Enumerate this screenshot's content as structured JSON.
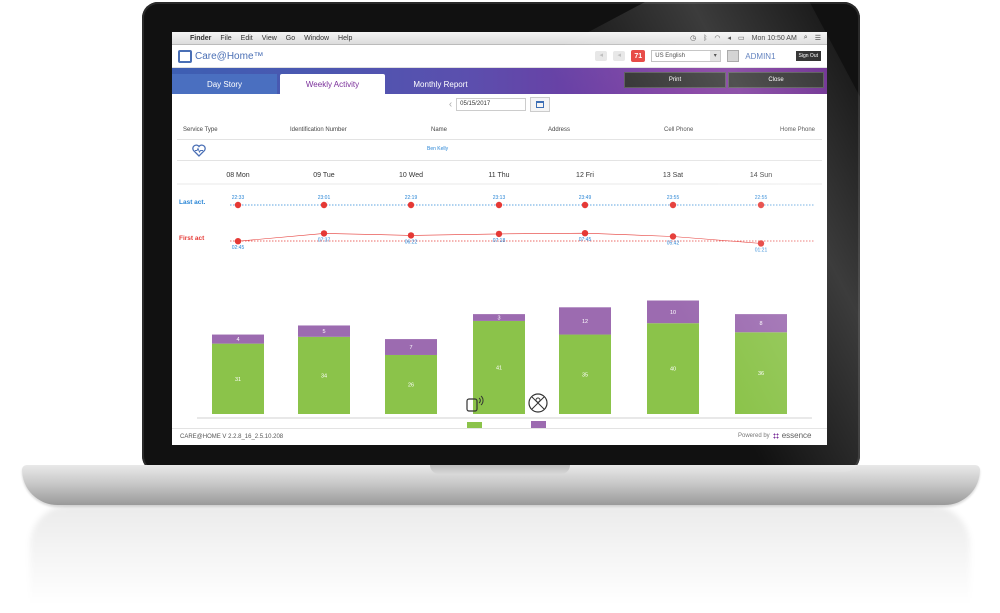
{
  "menubar": {
    "items": [
      "Finder",
      "File",
      "Edit",
      "View",
      "Go",
      "Window",
      "Help"
    ],
    "clock": "Mon 10:50 AM"
  },
  "app": {
    "logo": "Care@Home™",
    "alert_count": "71",
    "language": "US English",
    "user": "ADMIN1",
    "sign_out": "Sign Out"
  },
  "tabs": [
    {
      "label": "Day Story"
    },
    {
      "label": "Weekly Activity"
    },
    {
      "label": "Monthly Report"
    }
  ],
  "actions": {
    "print": "Print",
    "close": "Close"
  },
  "date": {
    "value": "05/15/2017"
  },
  "info_headers": {
    "service_type": "Service Type",
    "id_number": "Identification Number",
    "name": "Name",
    "address": "Address",
    "cell_phone": "Cell Phone",
    "home_phone": "Home Phone"
  },
  "client": {
    "name": "Ben Kelly"
  },
  "footer": {
    "version": "CARE@HOME V 2.2.8_16_2.5.10.208",
    "powered_by": "Powered by",
    "brand": "essence"
  },
  "colors": {
    "green": "#8bc34a",
    "purple": "#9c6bb0",
    "accent_blue": "#2a86d6",
    "accent_red": "#e53935"
  },
  "chart_data": {
    "type": "bar",
    "categories": [
      "08 Mon",
      "09 Tue",
      "10 Wed",
      "11 Thu",
      "12 Fri",
      "13 Sat",
      "14 Sun"
    ],
    "series": [
      {
        "values": [
          31,
          34,
          26,
          41,
          35,
          40,
          36
        ]
      },
      {
        "values": [
          4,
          5,
          7,
          3,
          12,
          10,
          8
        ]
      }
    ],
    "last_act": {
      "label": "Last act.",
      "times": [
        "22:33",
        "23:01",
        "22:19",
        "23:13",
        "23:49",
        "23:55",
        "22:55"
      ]
    },
    "first_act": {
      "label": "First act",
      "times": [
        "02:45",
        "07:37",
        "06:22",
        "07:18",
        "07:45",
        "05:42",
        "01:21"
      ]
    },
    "legend_icons": [
      "sensor-icon",
      "no-activity-icon"
    ]
  }
}
